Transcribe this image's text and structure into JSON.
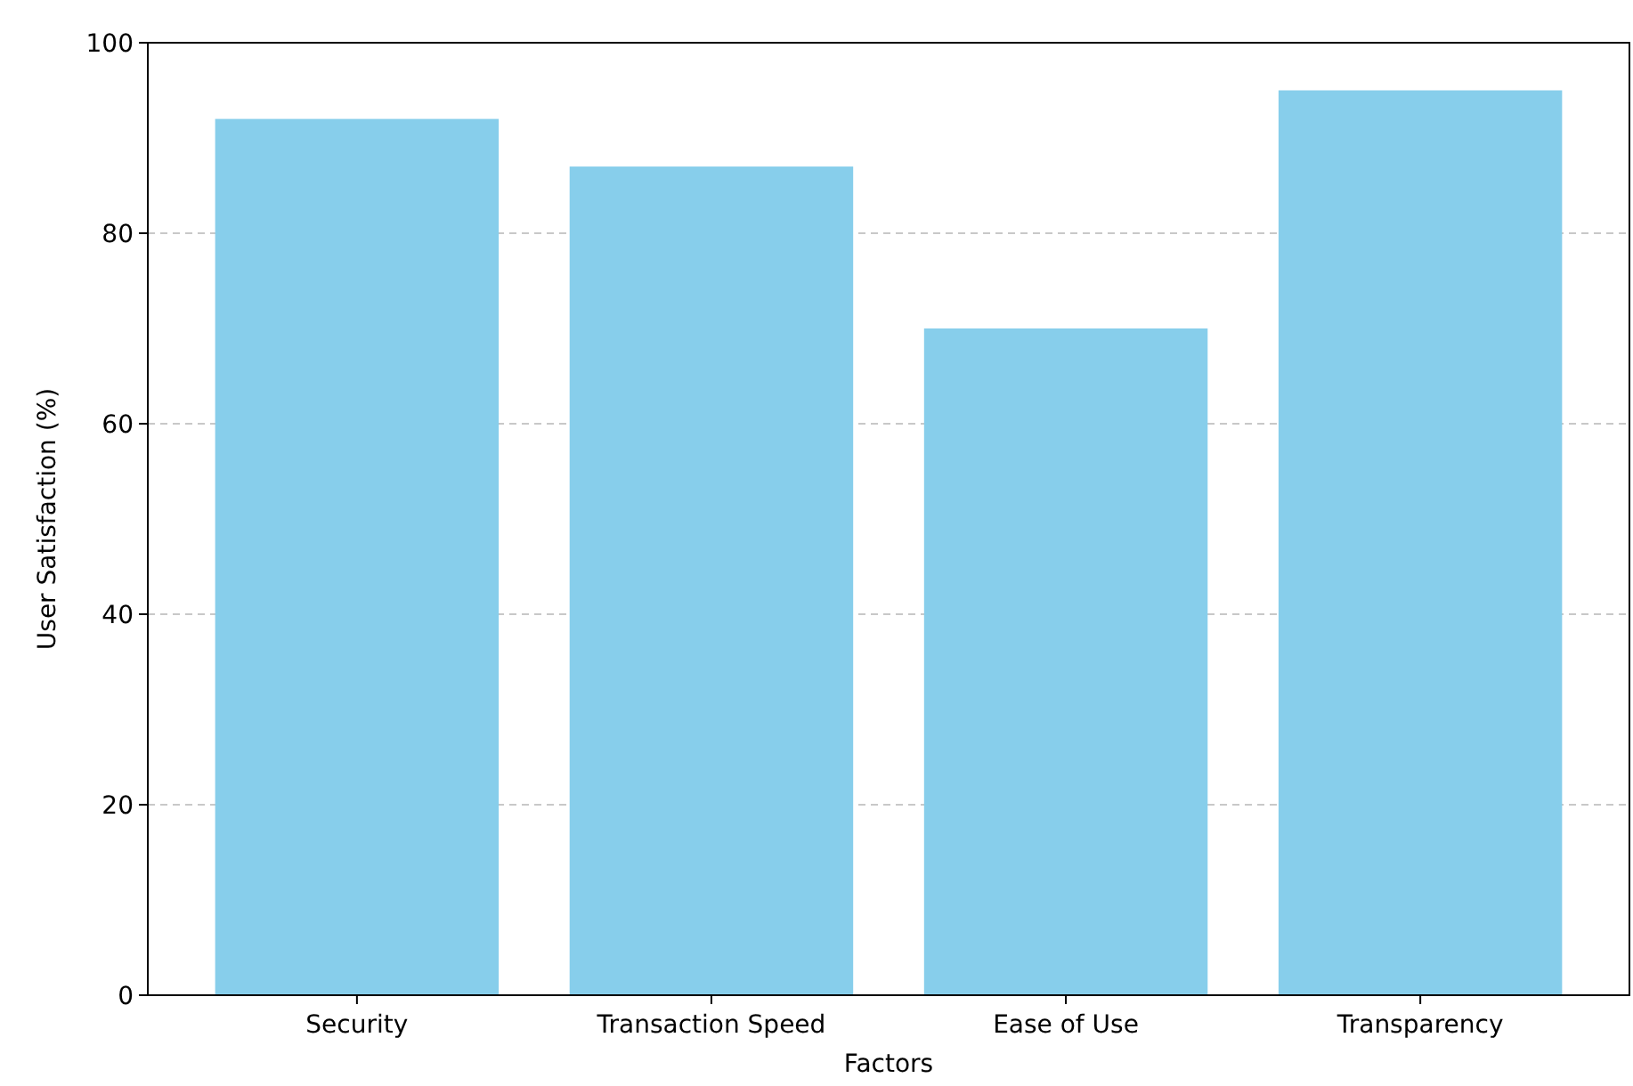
{
  "chart_data": {
    "type": "bar",
    "xlabel": "Factors",
    "ylabel": "User Satisfaction (%)",
    "categories": [
      "Security",
      "Transaction Speed",
      "Ease of Use",
      "Transparency"
    ],
    "values": [
      92,
      87,
      70,
      95
    ],
    "color": "#87ceeb",
    "ylim": [
      0,
      100
    ],
    "yticks": [
      0,
      20,
      40,
      60,
      80,
      100
    ],
    "grid": "y"
  }
}
